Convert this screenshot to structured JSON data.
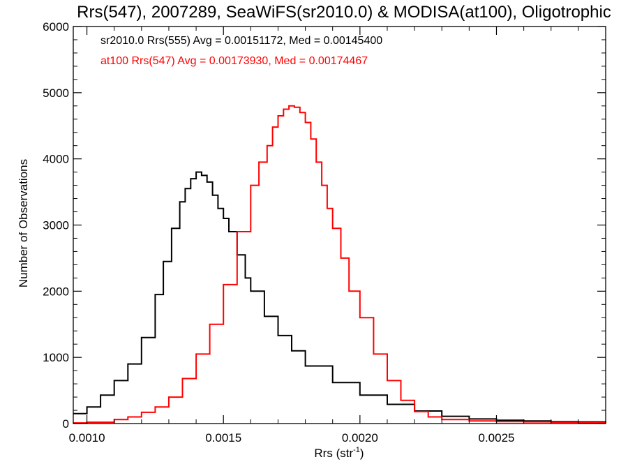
{
  "chart_data": {
    "type": "line",
    "title": "Rrs(547), 2007289, SeaWiFS(sr2010.0) & MODISA(at100), Oligotrophic",
    "xlabel": "Rrs (str",
    "xlabel_sup": "-1",
    "xlabel_suffix": ")",
    "ylabel": "Number of Observations",
    "xlim": [
      0.00095,
      0.0029
    ],
    "ylim": [
      0,
      6000
    ],
    "x_ticks": [
      0.001,
      0.0015,
      0.002,
      0.0025
    ],
    "x_tick_labels": [
      "0.0010",
      "0.0015",
      "0.0020",
      "0.0025"
    ],
    "y_ticks": [
      0,
      1000,
      2000,
      3000,
      4000,
      5000,
      6000
    ],
    "y_tick_labels": [
      "0",
      "1000",
      "2000",
      "3000",
      "4000",
      "5000",
      "6000"
    ],
    "legend_position": "top-left",
    "series": [
      {
        "name": "sr2010.0 Rrs(555) Avg = 0.00151172, Med = 0.00145400",
        "color": "#000000",
        "x": [
          0.00095,
          0.001,
          0.00105,
          0.0011,
          0.00115,
          0.0012,
          0.00125,
          0.00128,
          0.00131,
          0.00134,
          0.00136,
          0.00138,
          0.0014,
          0.00142,
          0.00144,
          0.00146,
          0.00148,
          0.0015,
          0.00152,
          0.00155,
          0.00158,
          0.0016,
          0.00165,
          0.0017,
          0.00175,
          0.0018,
          0.0019,
          0.002,
          0.0021,
          0.0022,
          0.0023,
          0.0024,
          0.0025,
          0.0026,
          0.0027,
          0.0028,
          0.0029
        ],
        "y": [
          150,
          250,
          430,
          650,
          900,
          1300,
          1950,
          2450,
          2950,
          3350,
          3550,
          3700,
          3800,
          3750,
          3650,
          3450,
          3250,
          3100,
          2900,
          2550,
          2200,
          2000,
          1620,
          1330,
          1100,
          870,
          620,
          430,
          290,
          190,
          110,
          70,
          50,
          40,
          30,
          25,
          20
        ]
      },
      {
        "name": "at100 Rrs(547) Avg = 0.00173930, Med = 0.00174467",
        "color": "#ff0000",
        "x": [
          0.00095,
          0.001,
          0.0011,
          0.00115,
          0.0012,
          0.00125,
          0.0013,
          0.00135,
          0.0014,
          0.00145,
          0.0015,
          0.00155,
          0.0016,
          0.00163,
          0.00166,
          0.00168,
          0.0017,
          0.00172,
          0.00174,
          0.00176,
          0.00178,
          0.0018,
          0.00182,
          0.00184,
          0.00186,
          0.00188,
          0.0019,
          0.00193,
          0.00196,
          0.002,
          0.00205,
          0.0021,
          0.00215,
          0.0022,
          0.00225,
          0.0023,
          0.0024,
          0.0025,
          0.0026,
          0.0027,
          0.0028,
          0.0029
        ],
        "y": [
          10,
          20,
          60,
          100,
          170,
          250,
          400,
          680,
          1050,
          1500,
          2100,
          2900,
          3600,
          3950,
          4200,
          4480,
          4650,
          4750,
          4800,
          4780,
          4700,
          4550,
          4300,
          3950,
          3600,
          3250,
          2950,
          2500,
          2000,
          1600,
          1050,
          650,
          350,
          180,
          100,
          60,
          40,
          30,
          25,
          20,
          15,
          10
        ]
      }
    ]
  }
}
